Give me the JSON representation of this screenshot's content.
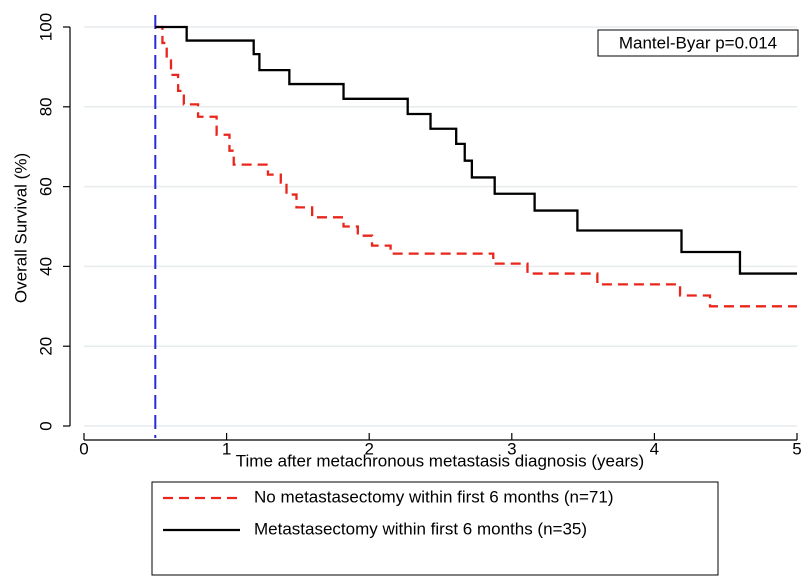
{
  "chart_data": {
    "type": "line",
    "step": true,
    "xlabel": "Time after metachronous metastasis diagnosis (years)",
    "ylabel": "Overall Survival (%)",
    "annotation": "Mantel-Byar p=0.014",
    "vline": 0.5,
    "vline_color": "#2b2bd6",
    "xlim": [
      0,
      5
    ],
    "xticks": [
      0,
      1,
      2,
      3,
      4,
      5
    ],
    "ylim": [
      0,
      100
    ],
    "yticks": [
      0,
      20,
      40,
      60,
      80,
      100
    ],
    "grid": true,
    "legend": "bottom",
    "series": [
      {
        "name": "No metastasectomy within first 6 months (n=71)",
        "color": "#e8261c",
        "dash": true,
        "x": [
          0.5,
          0.55,
          0.58,
          0.61,
          0.66,
          0.7,
          0.8,
          0.93,
          1.02,
          1.05,
          1.29,
          1.38,
          1.42,
          1.49,
          1.6,
          1.82,
          1.92,
          2.02,
          2.15,
          2.87,
          3.11,
          3.6,
          4.18,
          4.39,
          5.0
        ],
        "values": [
          100,
          96,
          92,
          88,
          84,
          80.6,
          77.5,
          73,
          69,
          65.5,
          63,
          61,
          58,
          54.8,
          52.3,
          50,
          47.7,
          45.2,
          43.2,
          40.7,
          38.2,
          35.5,
          32.7,
          30,
          30
        ]
      },
      {
        "name": "Metastasectomy within first 6 months (n=35)",
        "color": "#000000",
        "dash": false,
        "x": [
          0.5,
          0.72,
          1.19,
          1.23,
          1.44,
          1.82,
          2.27,
          2.43,
          2.61,
          2.67,
          2.72,
          2.88,
          3.16,
          3.46,
          4.19,
          4.6,
          5.0
        ],
        "values": [
          100,
          96.6,
          93.2,
          89.2,
          85.7,
          82,
          78.2,
          74.5,
          70.7,
          66.5,
          62.3,
          58.2,
          54,
          49,
          43.6,
          38.2,
          38.2
        ]
      }
    ]
  }
}
